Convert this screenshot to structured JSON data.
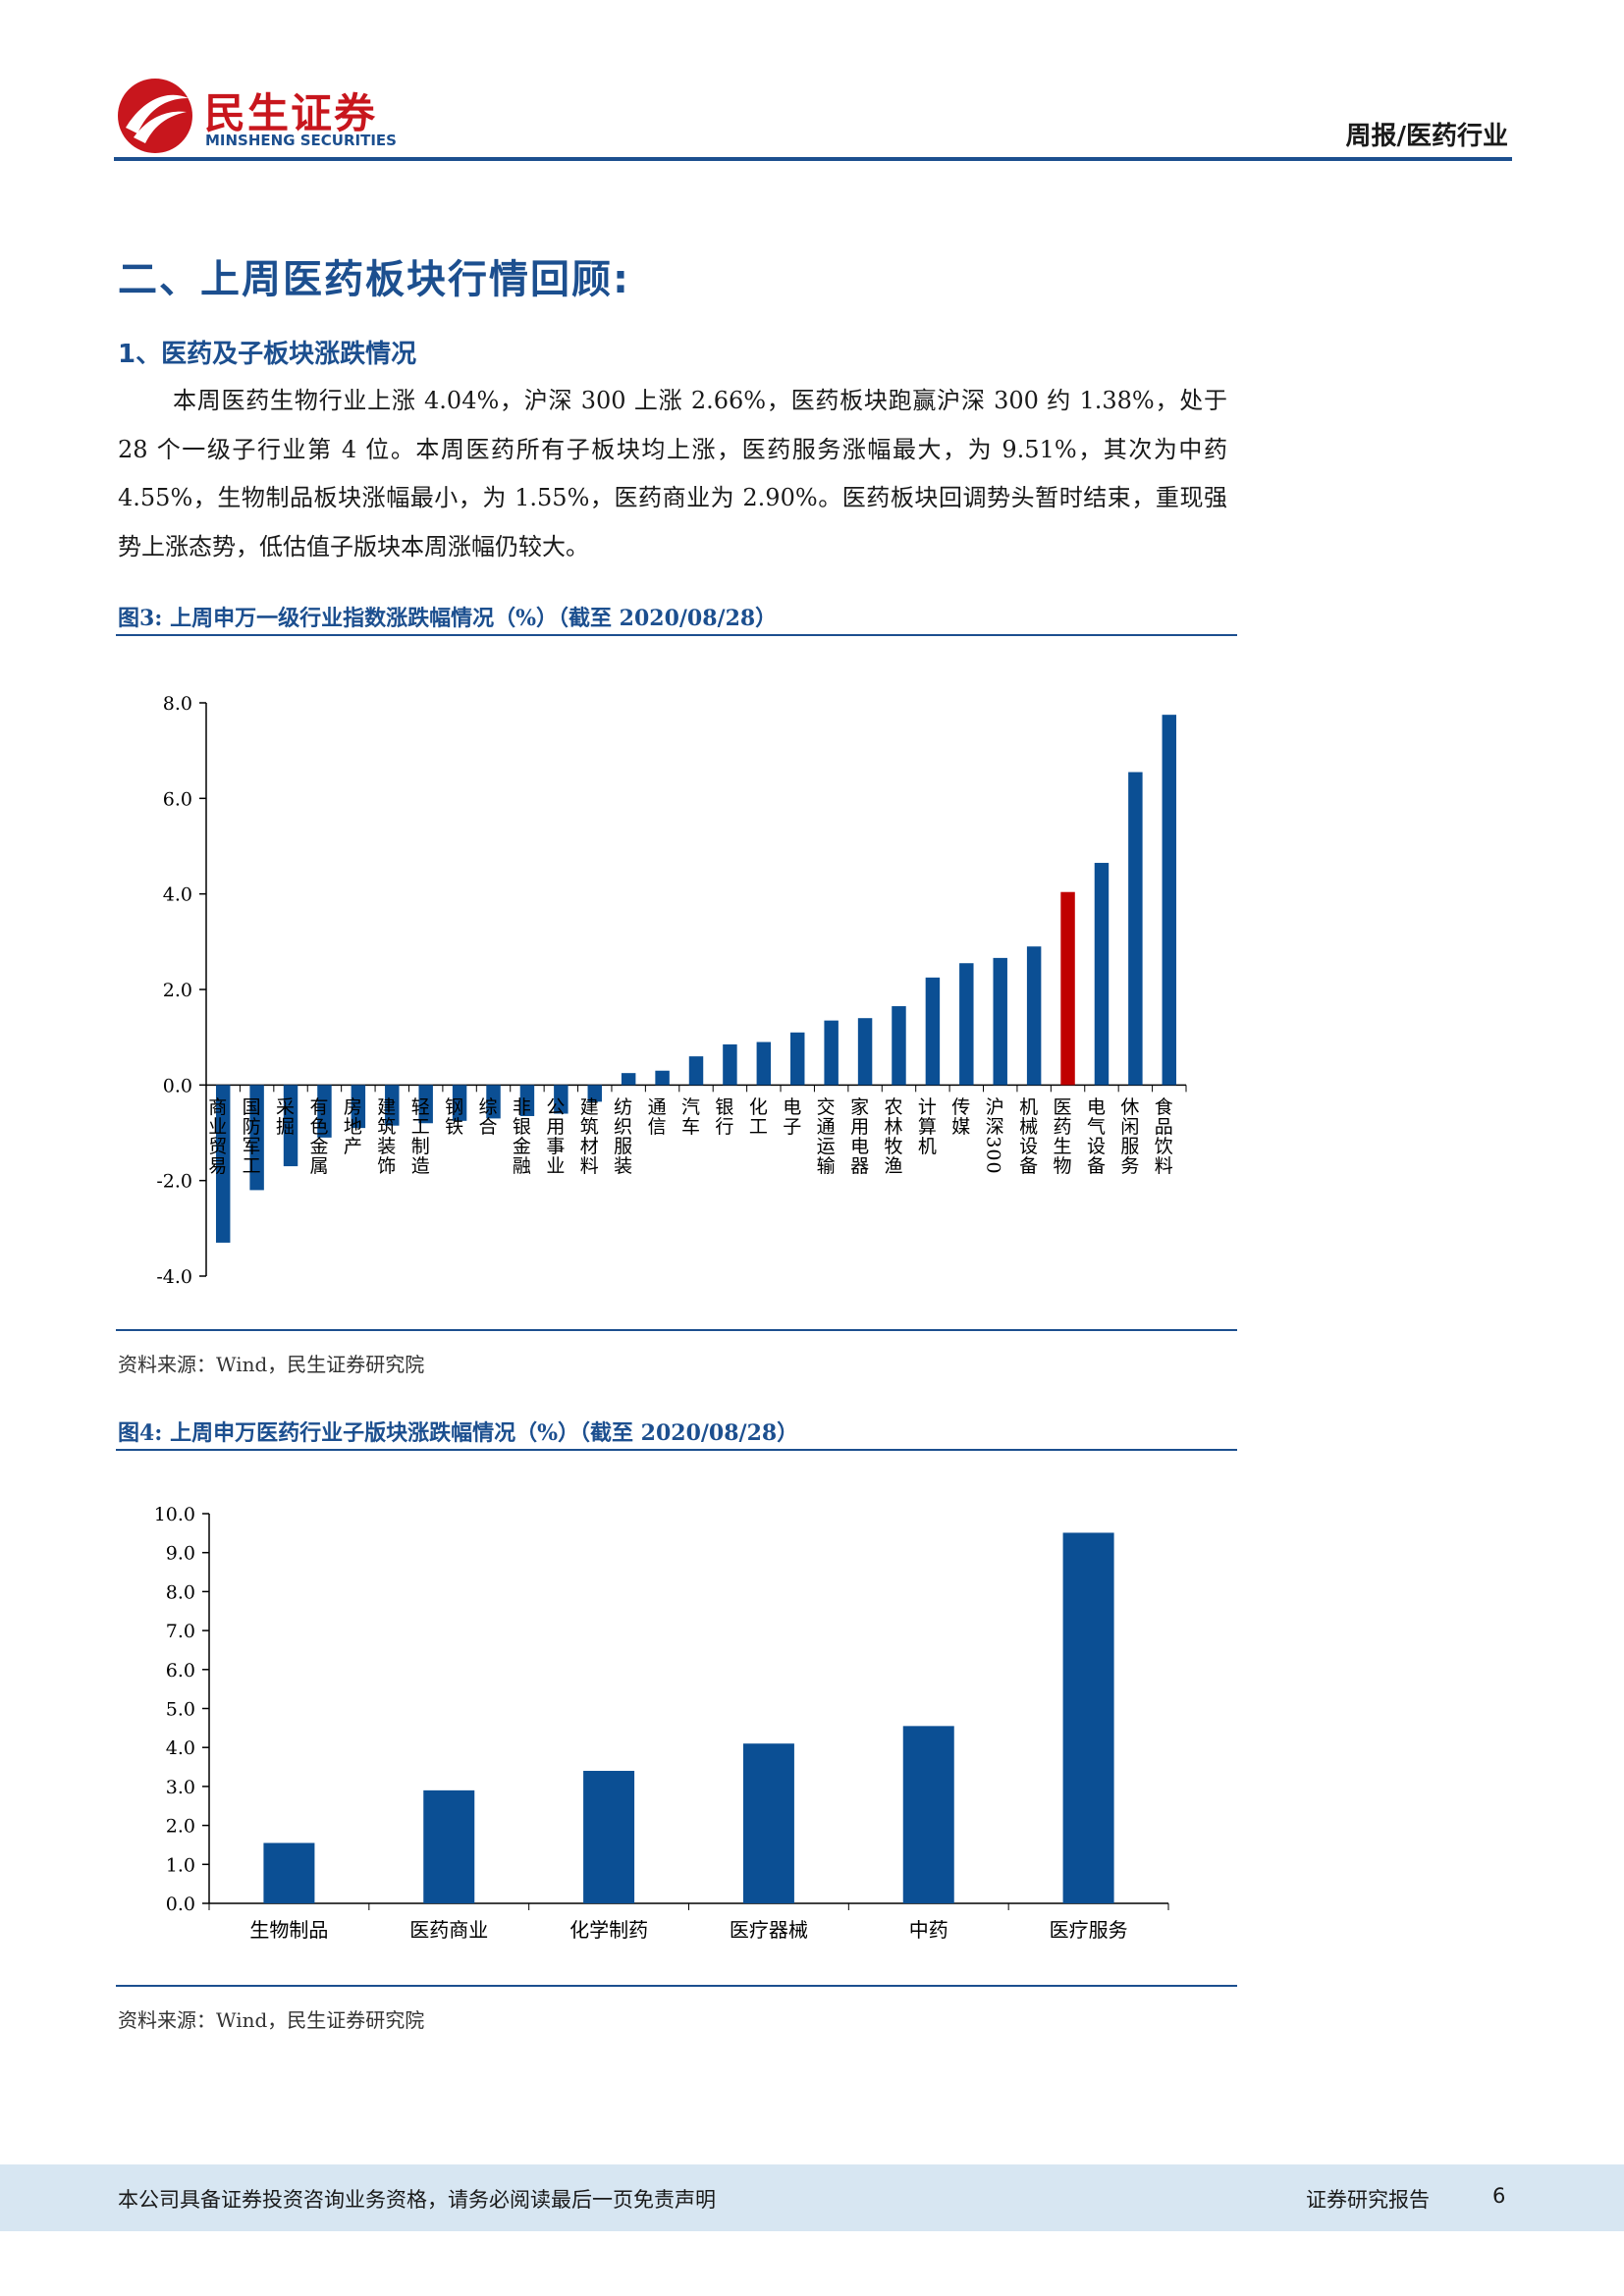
{
  "header": {
    "logo_cn": "民生证券",
    "logo_en": "MINSHENG SECURITIES",
    "report_type": "周报/医药行业"
  },
  "section": {
    "title": "二、上周医药板块行情回顾:",
    "subtitle": "1、医药及子板块涨跌情况",
    "paragraph": "本周医药生物行业上涨 4.04%，沪深 300 上涨 2.66%，医药板块跑赢沪深 300 约 1.38%，处于 28 个一级子行业第 4 位。本周医药所有子板块均上涨，医药服务涨幅最大，为 9.51%，其次为中药 4.55%，生物制品板块涨幅最小，为 1.55%，医药商业为 2.90%。医药板块回调势头暂时结束，重现强势上涨态势，低估值子版块本周涨幅仍较大。"
  },
  "figure3": {
    "title": "图3: 上周申万一级行业指数涨跌幅情况（%）（截至 2020/08/28）",
    "source": "资料来源：Wind，民生证券研究院"
  },
  "figure4": {
    "title": "图4: 上周申万医药行业子版块涨跌幅情况（%）（截至 2020/08/28）",
    "source": "资料来源：Wind，民生证券研究院"
  },
  "chart_data": [
    {
      "type": "bar",
      "categories": [
        "商业贸易",
        "国防军工",
        "采掘",
        "有色金属",
        "房地产",
        "建筑装饰",
        "轻工制造",
        "钢铁",
        "综合",
        "非银金融",
        "公用事业",
        "建筑材料",
        "纺织服装",
        "通信",
        "汽车",
        "银行",
        "化工",
        "电子",
        "交通运输",
        "家用电器",
        "农林牧渔",
        "计算机",
        "传媒",
        "沪深300",
        "机械设备",
        "医药生物",
        "电气设备",
        "休闲服务",
        "食品饮料"
      ],
      "values": [
        -3.3,
        -2.2,
        -1.7,
        -1.1,
        -0.9,
        -0.85,
        -0.8,
        -0.75,
        -0.7,
        -0.65,
        -0.6,
        -0.35,
        0.25,
        0.3,
        0.6,
        0.85,
        0.9,
        1.1,
        1.35,
        1.4,
        1.65,
        2.25,
        2.55,
        2.66,
        2.9,
        4.04,
        4.65,
        6.55,
        7.75
      ],
      "highlight": "医药生物",
      "colors": {
        "bar": "#0b4f94",
        "highlight": "#c00000"
      },
      "ylim": [
        -4.0,
        8.0
      ],
      "yticks": [
        "-4.0",
        "-2.0",
        "0.0",
        "2.0",
        "4.0",
        "6.0",
        "8.0"
      ],
      "title": "",
      "xlabel": "",
      "ylabel": ""
    },
    {
      "type": "bar",
      "categories": [
        "生物制品",
        "医药商业",
        "化学制药",
        "医疗器械",
        "中药",
        "医疗服务"
      ],
      "values": [
        1.55,
        2.9,
        3.4,
        4.1,
        4.55,
        9.51
      ],
      "colors": {
        "bar": "#0b4f94"
      },
      "ylim": [
        0.0,
        10.0
      ],
      "yticks": [
        "0.0",
        "1.0",
        "2.0",
        "3.0",
        "4.0",
        "5.0",
        "6.0",
        "7.0",
        "8.0",
        "9.0",
        "10.0"
      ],
      "title": "",
      "xlabel": "",
      "ylabel": ""
    }
  ],
  "footer": {
    "disclaimer": "本公司具备证券投资咨询业务资格，请务必阅读最后一页免责声明",
    "report_label": "证券研究报告",
    "page": "6"
  }
}
